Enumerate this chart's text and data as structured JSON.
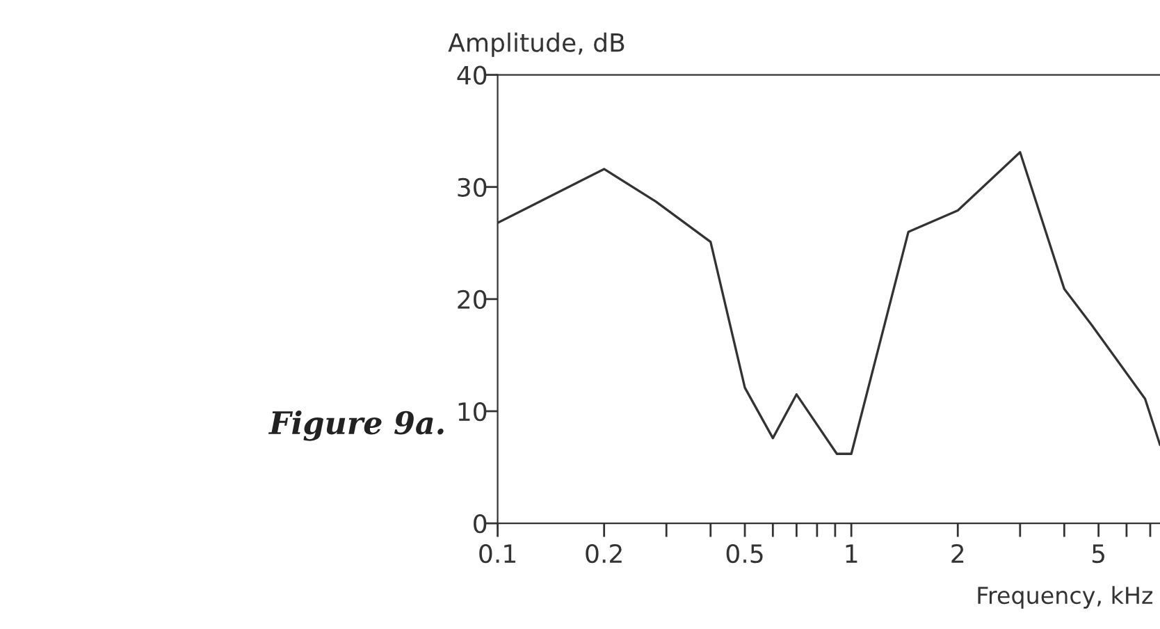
{
  "chart_data": {
    "type": "line",
    "xlabel": "Frequency, kHz",
    "ylabel": "Amplitude, dB",
    "annotations": [
      "Figure 9a."
    ],
    "x": [
      0.1,
      0.2,
      0.28,
      0.4,
      0.5,
      0.6,
      0.7,
      0.91,
      1.0,
      1.45,
      2.0,
      3.0,
      4.0,
      4.78,
      6.77,
      7.46
    ],
    "series": [
      {
        "color": "#333333",
        "values": [
          26.8,
          31.6,
          28.7,
          25.1,
          12.1,
          7.6,
          11.5,
          6.2,
          6.2,
          26.0,
          27.9,
          33.1,
          20.9,
          17.7,
          11.1,
          7.0
        ]
      }
    ],
    "log": "x",
    "xlim": [
      0.1,
      7.46
    ],
    "ylim": [
      0,
      40
    ],
    "xticks": [
      0.1,
      0.2,
      {
        "value": 0.3,
        "label": null
      },
      {
        "value": 0.4,
        "label": null
      },
      0.5,
      {
        "value": 0.6,
        "label": null
      },
      {
        "value": 0.7,
        "label": null
      },
      {
        "value": 0.8,
        "label": null
      },
      {
        "value": 0.9,
        "label": null
      },
      1,
      2,
      {
        "value": 3,
        "label": null
      },
      {
        "value": 4,
        "label": null
      },
      5,
      {
        "value": 6,
        "label": null
      },
      {
        "value": 7,
        "label": null
      }
    ],
    "yticks": [
      0,
      10,
      20,
      30,
      40
    ],
    "grid": false,
    "marker": "none",
    "line_style": "solid"
  }
}
